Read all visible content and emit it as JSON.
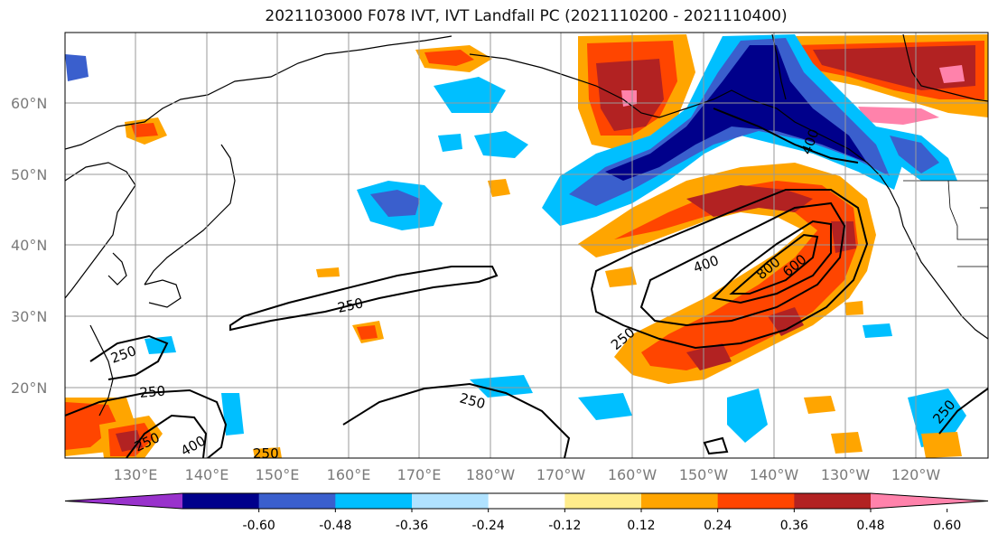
{
  "title": "2021103000 F078 IVT, IVT Landfall PC (2021110200 - 2021110400)",
  "lat_labels": [
    "60°N",
    "50°N",
    "40°N",
    "30°N",
    "20°N"
  ],
  "lon_labels": [
    "130°E",
    "140°E",
    "150°E",
    "160°E",
    "170°E",
    "180°W",
    "170°W",
    "160°W",
    "150°W",
    "140°W",
    "130°W",
    "120°W"
  ],
  "ivt_contour_labels": [
    "250",
    "250",
    "250",
    "250",
    "250",
    "250",
    "400",
    "400",
    "600",
    "800",
    "250",
    "250",
    "400"
  ],
  "colorbar": {
    "tick_labels": [
      "-0.60",
      "-0.48",
      "-0.36",
      "-0.24",
      "-0.12",
      "0.12",
      "0.24",
      "0.36",
      "0.48",
      "0.60"
    ],
    "colors": [
      "#9932cc",
      "#00008b",
      "#3a5fcd",
      "#00bfff",
      "#b0e2ff",
      "#ffffff",
      "#ffec8b",
      "#ffa500",
      "#ff4500",
      "#b22222",
      "#ff82ab"
    ]
  }
}
